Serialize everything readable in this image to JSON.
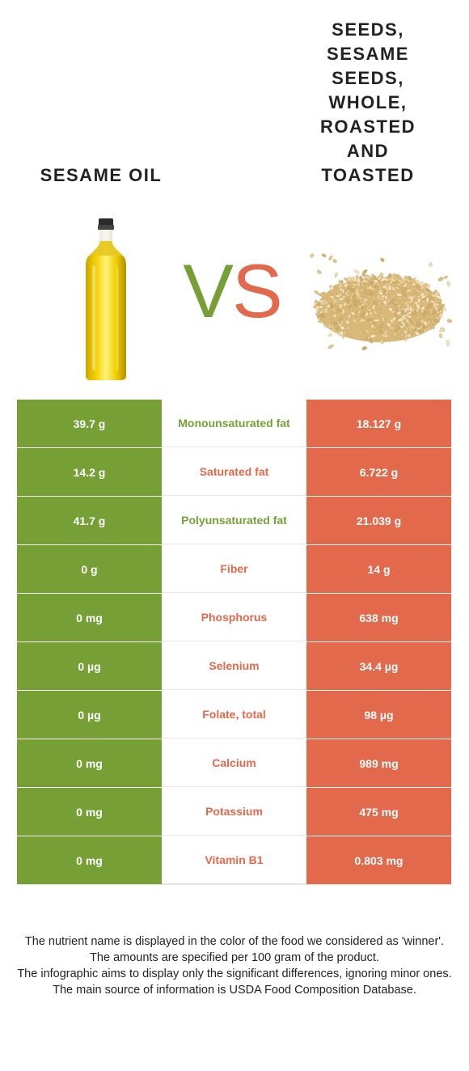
{
  "food_left": {
    "name": "Sesame oil",
    "color": "#76a036",
    "image_icon": "oil-bottle-icon"
  },
  "food_right": {
    "name": "Seeds, sesame seeds, whole, roasted and toasted",
    "name_lines": [
      "Seeds,",
      "sesame",
      "seeds,",
      "whole,",
      "roasted",
      "and",
      "toasted"
    ],
    "color": "#e2694b",
    "image_icon": "sesame-seed-pile-icon"
  },
  "vs": {
    "v": "V",
    "s": "S"
  },
  "rows": [
    {
      "left": "39.7 g",
      "nutrient": "Monounsaturated fat",
      "right": "18.127 g",
      "winner": "left"
    },
    {
      "left": "14.2 g",
      "nutrient": "Saturated fat",
      "right": "6.722 g",
      "winner": "right"
    },
    {
      "left": "41.7 g",
      "nutrient": "Polyunsaturated fat",
      "right": "21.039 g",
      "winner": "left"
    },
    {
      "left": "0 g",
      "nutrient": "Fiber",
      "right": "14 g",
      "winner": "right"
    },
    {
      "left": "0 mg",
      "nutrient": "Phosphorus",
      "right": "638 mg",
      "winner": "right"
    },
    {
      "left": "0 µg",
      "nutrient": "Selenium",
      "right": "34.4 µg",
      "winner": "right"
    },
    {
      "left": "0 µg",
      "nutrient": "Folate, total",
      "right": "98 µg",
      "winner": "right"
    },
    {
      "left": "0 mg",
      "nutrient": "Calcium",
      "right": "989 mg",
      "winner": "right"
    },
    {
      "left": "0 mg",
      "nutrient": "Potassium",
      "right": "475 mg",
      "winner": "right"
    },
    {
      "left": "0 mg",
      "nutrient": "Vitamin B1",
      "right": "0.803 mg",
      "winner": "right"
    }
  ],
  "footnote": [
    "The nutrient name is displayed in the color of the food we considered as 'winner'.",
    "The amounts are specified per 100 gram of the product.",
    "The infographic aims to display only the significant differences, ignoring minor ones.",
    "The main source of information is USDA Food Composition Database."
  ]
}
